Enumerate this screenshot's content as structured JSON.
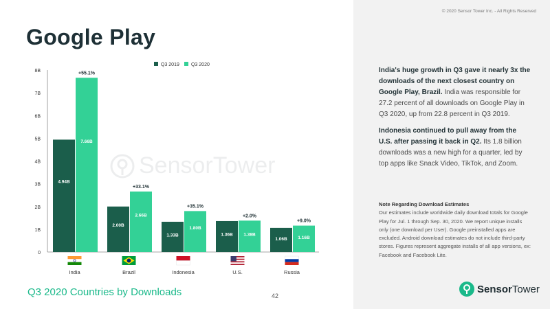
{
  "page": {
    "title": "Google Play",
    "copyright": "© 2020 Sensor Tower Inc. - All Rights Reserved",
    "footer_title": "Q3 2020 Countries by Downloads",
    "page_number": "42"
  },
  "brand": {
    "strong": "Sensor",
    "light": "Tower"
  },
  "colors": {
    "q3_2019": "#1b5e4b",
    "q3_2020": "#33d196",
    "accent": "#1ab98a"
  },
  "insights": [
    {
      "bold": "India's huge growth in Q3 gave it nearly 3x the downloads of the next closest country on Google Play, Brazil.",
      "text": " India was responsible for 27.2 percent of all downloads on Google Play in Q3 2020, up from 22.8 percent in Q3 2019."
    },
    {
      "bold": "Indonesia continued to pull away from the U.S. after passing it back in Q2.",
      "text": " Its 1.8 billion downloads was a new high for a quarter, led by top apps like Snack Video, TikTok, and Zoom."
    }
  ],
  "note": {
    "title": "Note Regarding Download Estimates",
    "text": "Our estimates include worldwide daily download totals for Google Play for Jul. 1 through Sep. 30, 2020. We report unique installs only (one download per User). Google preinstalled apps are excluded. Android download estimates do not include third-party stores. Figures represent aggregate installs of all app versions, ex: Facebook and Facebook Lite."
  },
  "chart_data": {
    "type": "bar",
    "categories": [
      "India",
      "Brazil",
      "Indonesia",
      "U.S.",
      "Russia"
    ],
    "series": [
      {
        "name": "Q3 2019",
        "values": [
          4.94,
          2.0,
          1.33,
          1.36,
          1.06
        ],
        "labels": [
          "4.94B",
          "2.00B",
          "1.33B",
          "1.36B",
          "1.06B"
        ],
        "color": "#1b5e4b"
      },
      {
        "name": "Q3 2020",
        "values": [
          7.66,
          2.66,
          1.8,
          1.38,
          1.16
        ],
        "labels": [
          "7.66B",
          "2.66B",
          "1.80B",
          "1.38B",
          "1.16B"
        ],
        "color": "#33d196"
      }
    ],
    "growth_labels": [
      "+55.1%",
      "+33.1%",
      "+35.1%",
      "+2.0%",
      "+9.0%"
    ],
    "y_ticks": [
      0,
      1,
      2,
      3,
      4,
      5,
      6,
      7,
      8
    ],
    "y_tick_labels": [
      "0",
      "1B",
      "2B",
      "3B",
      "4B",
      "5B",
      "6B",
      "7B",
      "8B"
    ],
    "ylim": [
      0,
      8
    ],
    "legend_position": "top",
    "flags": [
      "india-flag",
      "brazil-flag",
      "indonesia-flag",
      "us-flag",
      "russia-flag"
    ],
    "title": "",
    "xlabel": "",
    "ylabel": ""
  }
}
